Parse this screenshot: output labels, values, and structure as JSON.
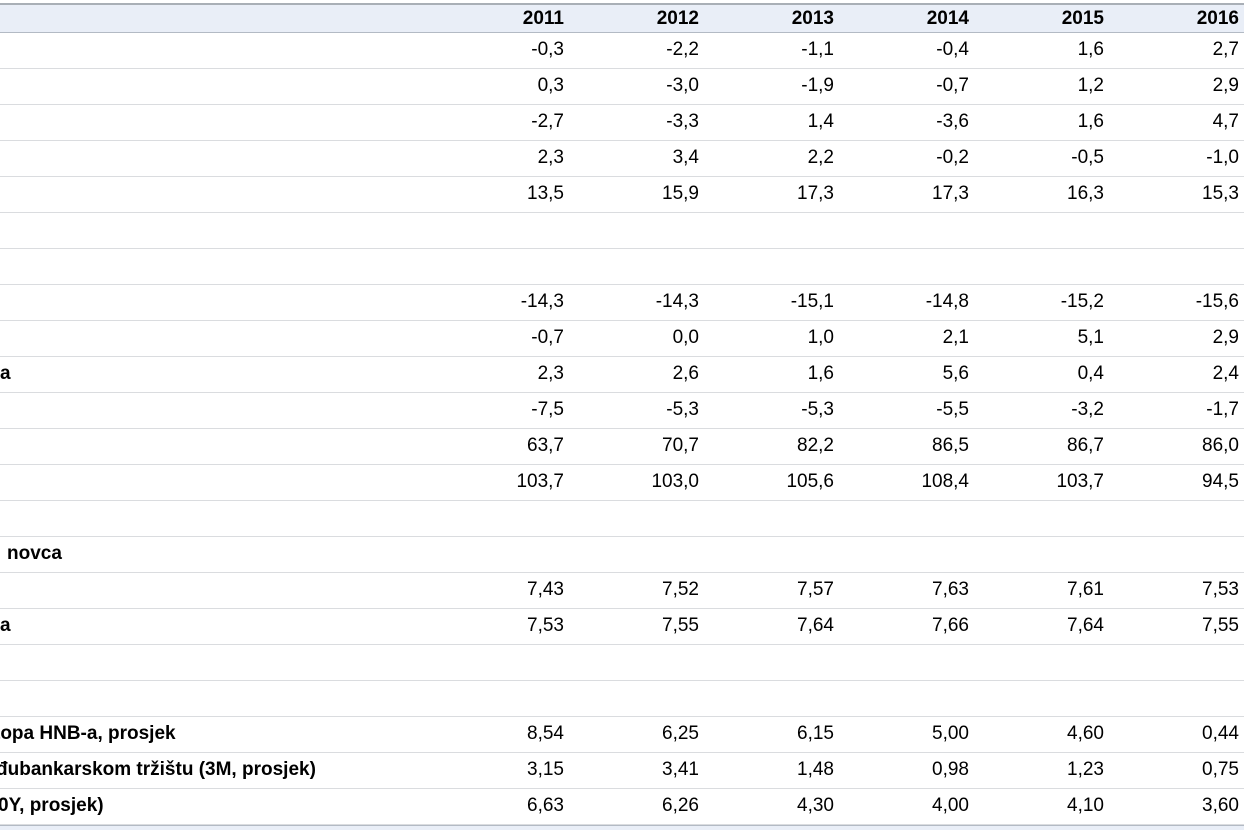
{
  "table": {
    "column_headers": [
      "2011",
      "2012",
      "2013",
      "2014",
      "2015",
      "2016"
    ],
    "decimal_style": "comma",
    "rows": [
      {
        "label": "",
        "bold": false,
        "indent": 0,
        "values": [
          "-0,3",
          "-2,2",
          "-1,1",
          "-0,4",
          "1,6",
          "2,7"
        ]
      },
      {
        "label": "",
        "bold": false,
        "indent": 0,
        "values": [
          "0,3",
          "-3,0",
          "-1,9",
          "-0,7",
          "1,2",
          "2,9"
        ]
      },
      {
        "label": "",
        "bold": false,
        "indent": 0,
        "values": [
          "-2,7",
          "-3,3",
          "1,4",
          "-3,6",
          "1,6",
          "4,7"
        ]
      },
      {
        "label": "",
        "bold": false,
        "indent": 0,
        "values": [
          "2,3",
          "3,4",
          "2,2",
          "-0,2",
          "-0,5",
          "-1,0"
        ]
      },
      {
        "label": "",
        "bold": false,
        "indent": 0,
        "values": [
          "13,5",
          "15,9",
          "17,3",
          "17,3",
          "16,3",
          "15,3"
        ]
      },
      {
        "label": "",
        "bold": false,
        "indent": 0,
        "values": [
          "",
          "",
          "",
          "",
          "",
          ""
        ]
      },
      {
        "label": "",
        "bold": false,
        "indent": 0,
        "values": [
          "",
          "",
          "",
          "",
          "",
          ""
        ]
      },
      {
        "label": "",
        "bold": false,
        "indent": 0,
        "values": [
          "-14,3",
          "-14,3",
          "-15,1",
          "-14,8",
          "-15,2",
          "-15,6"
        ]
      },
      {
        "label": "",
        "bold": false,
        "indent": 0,
        "values": [
          "-0,7",
          "0,0",
          "1,0",
          "2,1",
          "5,1",
          "2,9"
        ]
      },
      {
        "label": "a",
        "bold": true,
        "indent": 0,
        "values": [
          "2,3",
          "2,6",
          "1,6",
          "5,6",
          "0,4",
          "2,4"
        ]
      },
      {
        "label": "",
        "bold": false,
        "indent": 0,
        "values": [
          "-7,5",
          "-5,3",
          "-5,3",
          "-5,5",
          "-3,2",
          "-1,7"
        ]
      },
      {
        "label": "",
        "bold": false,
        "indent": 0,
        "values": [
          "63,7",
          "70,7",
          "82,2",
          "86,5",
          "86,7",
          "86,0"
        ]
      },
      {
        "label": "",
        "bold": false,
        "indent": 0,
        "values": [
          "103,7",
          "103,0",
          "105,6",
          "108,4",
          "103,7",
          "94,5"
        ]
      },
      {
        "label": "",
        "bold": false,
        "indent": 0,
        "values": [
          "",
          "",
          "",
          "",
          "",
          ""
        ]
      },
      {
        "label": "novca",
        "bold": true,
        "indent": 7,
        "values": [
          "",
          "",
          "",
          "",
          "",
          ""
        ]
      },
      {
        "label": "",
        "bold": false,
        "indent": 0,
        "values": [
          "7,43",
          "7,52",
          "7,57",
          "7,63",
          "7,61",
          "7,53"
        ]
      },
      {
        "label": "a",
        "bold": true,
        "indent": 0,
        "values": [
          "7,53",
          "7,55",
          "7,64",
          "7,66",
          "7,64",
          "7,55"
        ]
      },
      {
        "label": "",
        "bold": false,
        "indent": 0,
        "values": [
          "",
          "",
          "",
          "",
          "",
          ""
        ]
      },
      {
        "label": "",
        "bold": false,
        "indent": 0,
        "values": [
          "",
          "",
          "",
          "",
          "",
          ""
        ]
      },
      {
        "label": "topa HNB-a, prosjek",
        "bold": true,
        "indent": -6,
        "values": [
          "8,54",
          "6,25",
          "6,15",
          "5,00",
          "4,60",
          "0,44"
        ]
      },
      {
        "label": "đubankarskom tržištu (3M, prosjek)",
        "bold": true,
        "indent": -4,
        "values": [
          "3,15",
          "3,41",
          "1,48",
          "0,98",
          "1,23",
          "0,75"
        ]
      },
      {
        "label": "0Y, prosjek)",
        "bold": true,
        "indent": -2,
        "values": [
          "6,63",
          "6,26",
          "4,30",
          "4,00",
          "4,10",
          "3,60"
        ]
      }
    ]
  },
  "colors": {
    "header_fill": "#e9eef7",
    "grid_line": "#dadcdf",
    "header_border": "#b3bac4",
    "top_border": "#a9afb6",
    "text": "#000000",
    "background": "#ffffff"
  }
}
